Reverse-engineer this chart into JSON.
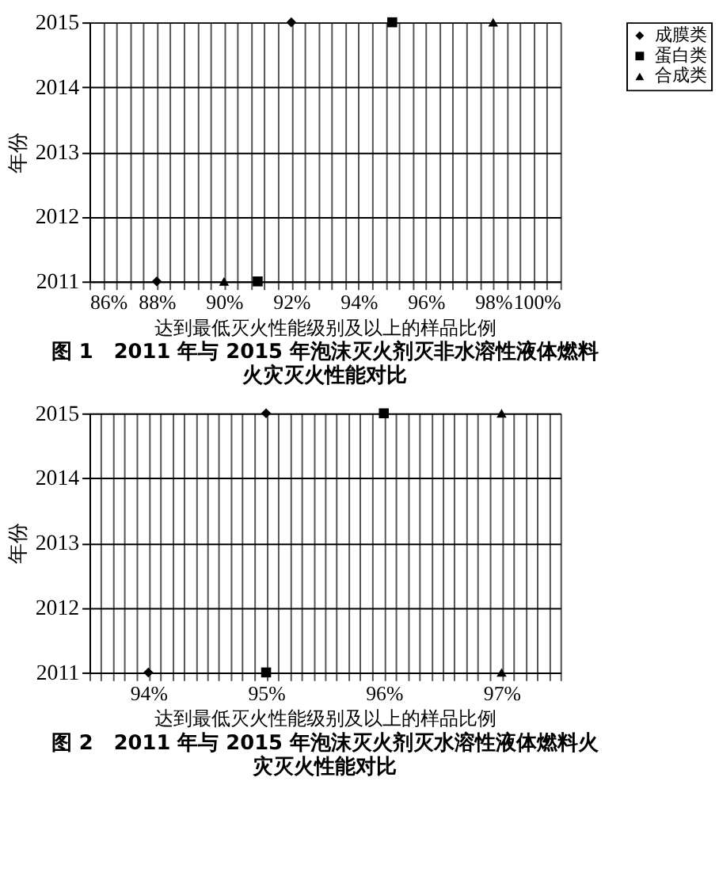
{
  "chart_data": [
    {
      "type": "scatter",
      "title": "图 1　2011 年与 2015 年泡沫灭火剂灭非水溶性液体燃料火灾灭火性能对比",
      "xlabel": "达到最低灭火性能级别及以上的样品比例",
      "ylabel": "年份",
      "series": [
        {
          "name": "成膜类",
          "color": "#000000",
          "marker": "diamond",
          "x": [
            88,
            92
          ],
          "values": [
            2011,
            2015
          ]
        },
        {
          "name": "蛋白类",
          "color": "#000000",
          "marker": "square",
          "x": [
            91,
            95
          ],
          "values": [
            2011,
            2015
          ]
        },
        {
          "name": "合成类",
          "color": "#000000",
          "marker": "triangle",
          "x": [
            90,
            98
          ],
          "values": [
            2011,
            2015
          ]
        }
      ],
      "xlim": [
        86,
        100
      ],
      "xticks": [
        {
          "value": 86,
          "label": "86%"
        },
        {
          "value": 86.4,
          "label": null
        },
        {
          "value": 86.8,
          "label": null
        },
        {
          "value": 87.2,
          "label": null
        },
        {
          "value": 87.6,
          "label": null
        },
        {
          "value": 88,
          "label": "88%"
        },
        {
          "value": 88.4,
          "label": null
        },
        {
          "value": 88.8,
          "label": null
        },
        {
          "value": 89.2,
          "label": null
        },
        {
          "value": 89.6,
          "label": null
        },
        {
          "value": 90,
          "label": "90%"
        },
        {
          "value": 90.4,
          "label": null
        },
        {
          "value": 90.8,
          "label": null
        },
        {
          "value": 91.2,
          "label": null
        },
        {
          "value": 91.6,
          "label": null
        },
        {
          "value": 92,
          "label": "92%"
        },
        {
          "value": 92.4,
          "label": null
        },
        {
          "value": 92.8,
          "label": null
        },
        {
          "value": 93.2,
          "label": null
        },
        {
          "value": 93.6,
          "label": null
        },
        {
          "value": 94,
          "label": "94%"
        },
        {
          "value": 94.4,
          "label": null
        },
        {
          "value": 94.8,
          "label": null
        },
        {
          "value": 95.2,
          "label": null
        },
        {
          "value": 95.6,
          "label": null
        },
        {
          "value": 96,
          "label": "96%"
        },
        {
          "value": 96.4,
          "label": null
        },
        {
          "value": 96.8,
          "label": null
        },
        {
          "value": 97.2,
          "label": null
        },
        {
          "value": 97.6,
          "label": null
        },
        {
          "value": 98,
          "label": "98%"
        },
        {
          "value": 98.4,
          "label": null
        },
        {
          "value": 98.8,
          "label": null
        },
        {
          "value": 99.2,
          "label": null
        },
        {
          "value": 99.6,
          "label": null
        },
        {
          "value": 100,
          "label": "100%"
        }
      ],
      "ylim": [
        2011,
        2015
      ],
      "yticks": [
        2011,
        2012,
        2013,
        2014,
        2015
      ],
      "grid": true,
      "legend": "right"
    },
    {
      "type": "scatter",
      "title": "图 2　2011 年与 2015 年泡沫灭火剂灭水溶性液体燃料火灾灭火性能对比",
      "xlabel": "达到最低灭火性能级别及以上的样品比例",
      "ylabel": "年份",
      "series": [
        {
          "name": "成膜类",
          "color": "#000000",
          "marker": "diamond",
          "x": [
            94,
            95
          ],
          "values": [
            2011,
            2015
          ]
        },
        {
          "name": "蛋白类",
          "color": "#000000",
          "marker": "square",
          "x": [
            95,
            96
          ],
          "values": [
            2011,
            2015
          ]
        },
        {
          "name": "合成类",
          "color": "#000000",
          "marker": "triangle",
          "x": [
            97,
            97
          ],
          "values": [
            2011,
            2015
          ]
        }
      ],
      "xlim": [
        93.5,
        97.5
      ],
      "xticks": [
        {
          "value": 93.5,
          "label": null
        },
        {
          "value": 93.6,
          "label": null
        },
        {
          "value": 93.7,
          "label": null
        },
        {
          "value": 93.8,
          "label": null
        },
        {
          "value": 93.9,
          "label": null
        },
        {
          "value": 94,
          "label": "94%"
        },
        {
          "value": 94.1,
          "label": null
        },
        {
          "value": 94.2,
          "label": null
        },
        {
          "value": 94.3,
          "label": null
        },
        {
          "value": 94.4,
          "label": null
        },
        {
          "value": 94.5,
          "label": null
        },
        {
          "value": 94.6,
          "label": null
        },
        {
          "value": 94.7,
          "label": null
        },
        {
          "value": 94.8,
          "label": null
        },
        {
          "value": 94.9,
          "label": null
        },
        {
          "value": 95,
          "label": "95%"
        },
        {
          "value": 95.1,
          "label": null
        },
        {
          "value": 95.2,
          "label": null
        },
        {
          "value": 95.3,
          "label": null
        },
        {
          "value": 95.4,
          "label": null
        },
        {
          "value": 95.5,
          "label": null
        },
        {
          "value": 95.6,
          "label": null
        },
        {
          "value": 95.7,
          "label": null
        },
        {
          "value": 95.8,
          "label": null
        },
        {
          "value": 95.9,
          "label": null
        },
        {
          "value": 96,
          "label": "96%"
        },
        {
          "value": 96.1,
          "label": null
        },
        {
          "value": 96.2,
          "label": null
        },
        {
          "value": 96.3,
          "label": null
        },
        {
          "value": 96.4,
          "label": null
        },
        {
          "value": 96.5,
          "label": null
        },
        {
          "value": 96.6,
          "label": null
        },
        {
          "value": 96.7,
          "label": null
        },
        {
          "value": 96.8,
          "label": null
        },
        {
          "value": 96.9,
          "label": null
        },
        {
          "value": 97,
          "label": "97%"
        },
        {
          "value": 97.1,
          "label": null
        },
        {
          "value": 97.2,
          "label": null
        },
        {
          "value": 97.3,
          "label": null
        },
        {
          "value": 97.4,
          "label": null
        },
        {
          "value": 97.5,
          "label": null
        }
      ],
      "ylim": [
        2011,
        2015
      ],
      "yticks": [
        2011,
        2012,
        2013,
        2014,
        2015
      ],
      "grid": true,
      "legend": "right"
    }
  ]
}
